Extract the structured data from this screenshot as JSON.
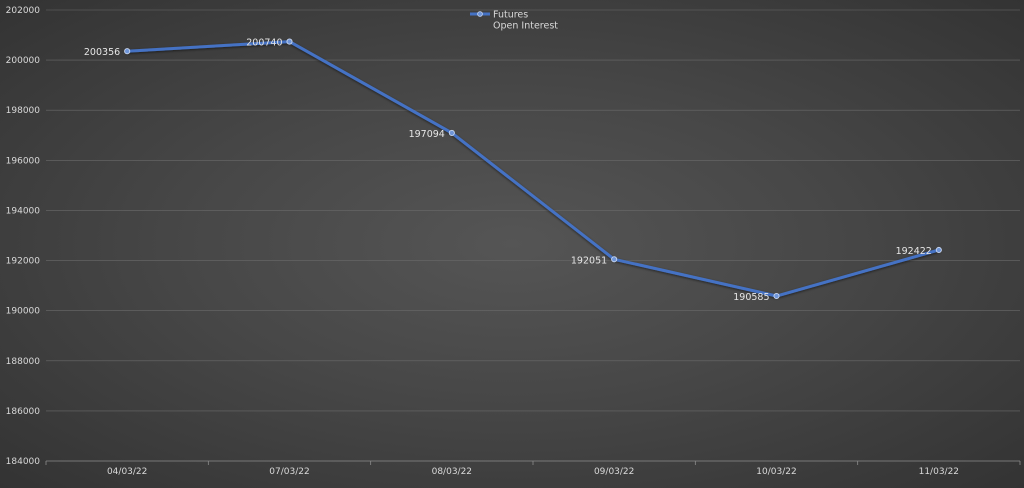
{
  "chart_data": {
    "type": "line",
    "categories": [
      "04/03/22",
      "07/03/22",
      "08/03/22",
      "09/03/22",
      "10/03/22",
      "11/03/22"
    ],
    "series": [
      {
        "name_lines": [
          "Futures",
          "Open Interest"
        ],
        "values": [
          200356,
          200740,
          197094,
          192051,
          190585,
          192422
        ],
        "data_labels": [
          "200356",
          "200740",
          "197094",
          "192051",
          "190585",
          "192422"
        ],
        "color": "#4472c4"
      }
    ],
    "y_ticks": [
      "184000",
      "186000",
      "188000",
      "190000",
      "192000",
      "194000",
      "196000",
      "198000",
      "200000",
      "202000"
    ],
    "ylim": [
      184000,
      202000
    ],
    "grid": true,
    "legend_position": "top-center"
  }
}
